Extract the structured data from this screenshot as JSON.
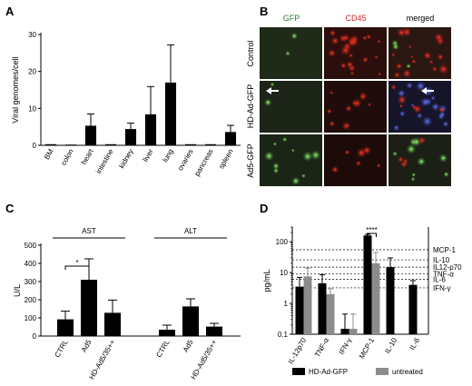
{
  "panels": {
    "A": "A",
    "B": "B",
    "C": "C",
    "D": "D"
  },
  "micro": {
    "columns": [
      "GFP",
      "CD45",
      "merged"
    ],
    "column_colors": [
      "#2e7d32",
      "#c62828",
      "#000000"
    ],
    "rows": [
      "Control",
      "HD-Ad-GFP",
      "Ad5-GFP"
    ]
  },
  "chart_data": [
    {
      "id": "A",
      "type": "bar",
      "ylabel": "Viral genomes/cell",
      "ylim": [
        0,
        30
      ],
      "yticks": [
        0,
        10,
        20,
        30
      ],
      "categories": [
        "BM",
        "colon",
        "heart",
        "intestine",
        "kidney",
        "liver",
        "lung",
        "ovaries",
        "pancreas",
        "spleen"
      ],
      "values": [
        0.3,
        0.2,
        5.3,
        0.3,
        4.4,
        8.4,
        17.0,
        0.3,
        0.3,
        3.6
      ],
      "errors": [
        0.2,
        0.1,
        3.2,
        0.2,
        1.6,
        7.5,
        10.2,
        0.2,
        0.2,
        1.8
      ]
    },
    {
      "id": "C",
      "type": "bar",
      "ylabel": "U/L",
      "ylim": [
        0,
        500
      ],
      "yticks": [
        0,
        100,
        200,
        300,
        400,
        500
      ],
      "groups": [
        "AST",
        "ALT"
      ],
      "categories": [
        "CTRL",
        "Ad5",
        "HD-Ad5/35++"
      ],
      "series": [
        {
          "group": "AST",
          "values": [
            92,
            310,
            128
          ],
          "errors": [
            45,
            115,
            70
          ]
        },
        {
          "group": "ALT",
          "values": [
            35,
            163,
            52
          ],
          "errors": [
            25,
            42,
            18
          ]
        }
      ],
      "significance": "*"
    },
    {
      "id": "D",
      "type": "bar",
      "ylabel": "pg/mL",
      "yscale": "log",
      "ylim": [
        0.1,
        300
      ],
      "yticks": [
        0.1,
        1,
        10,
        100
      ],
      "categories": [
        "IL-12p70",
        "TNF-α",
        "IFN-γ",
        "MCP-1",
        "IL-10",
        "IL-6"
      ],
      "series": [
        {
          "name": "HD-Ad-GFP",
          "color": "#000000",
          "values": [
            3.5,
            4.5,
            0.15,
            160,
            15,
            4.0
          ],
          "errors_hi": [
            7.0,
            8.5,
            0.45,
            175,
            30,
            5.5
          ]
        },
        {
          "name": "untreated",
          "color": "#8c8c8c",
          "values": [
            7.5,
            2.0,
            0.15,
            20,
            null,
            null
          ],
          "errors_hi": [
            14,
            3.0,
            0.45,
            45,
            null,
            null
          ]
        }
      ],
      "reference_lines": [
        {
          "label": "MCP-1",
          "value": 55
        },
        {
          "label": "IL-10",
          "value": 26
        },
        {
          "label": "IL12-p70",
          "value": 15
        },
        {
          "label": "TNF-α",
          "value": 9
        },
        {
          "label": "IL-6",
          "value": 6
        },
        {
          "label": "IFN-γ",
          "value": 3.2
        }
      ],
      "significance": "****",
      "legend_position": "bottom"
    }
  ]
}
